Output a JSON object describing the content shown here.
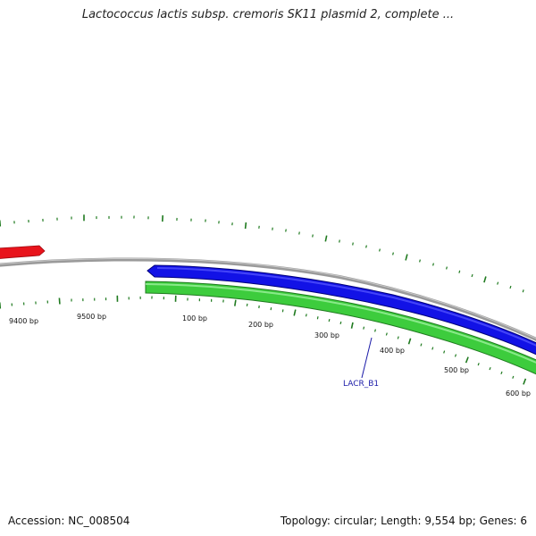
{
  "title": "Lactococcus lactis subsp. cremoris SK11 plasmid 2, complete ...",
  "footer": {
    "accession": "Accession: NC_008504",
    "summary": "Topology: circular; Length: 9,554 bp; Genes: 6"
  },
  "plasmid": {
    "length_bp": 9554,
    "topology": "circular"
  },
  "ticks": [
    {
      "label": "9400 bp",
      "bp": 9400
    },
    {
      "label": "9500 bp",
      "bp": 9500
    },
    {
      "label": "100 bp",
      "bp": 100
    },
    {
      "label": "200 bp",
      "bp": 200
    },
    {
      "label": "300 bp",
      "bp": 300
    },
    {
      "label": "400 bp",
      "bp": 400
    },
    {
      "label": "500 bp",
      "bp": 500
    },
    {
      "label": "600 bp",
      "bp": 600
    }
  ],
  "features": [
    {
      "track": "outer-red",
      "color": "#e8141c",
      "strand": "plus"
    },
    {
      "track": "blue",
      "color": "#1212e6",
      "strand": "minus"
    },
    {
      "track": "green",
      "color": "#3dcc3d",
      "strand": "plus"
    }
  ],
  "gene_labels": [
    {
      "text": "LACR_B1"
    }
  ],
  "colors": {
    "backbone": "#8a8a8a",
    "ticks": "#1f7a1f",
    "gene_label": "#1a1aa8"
  }
}
